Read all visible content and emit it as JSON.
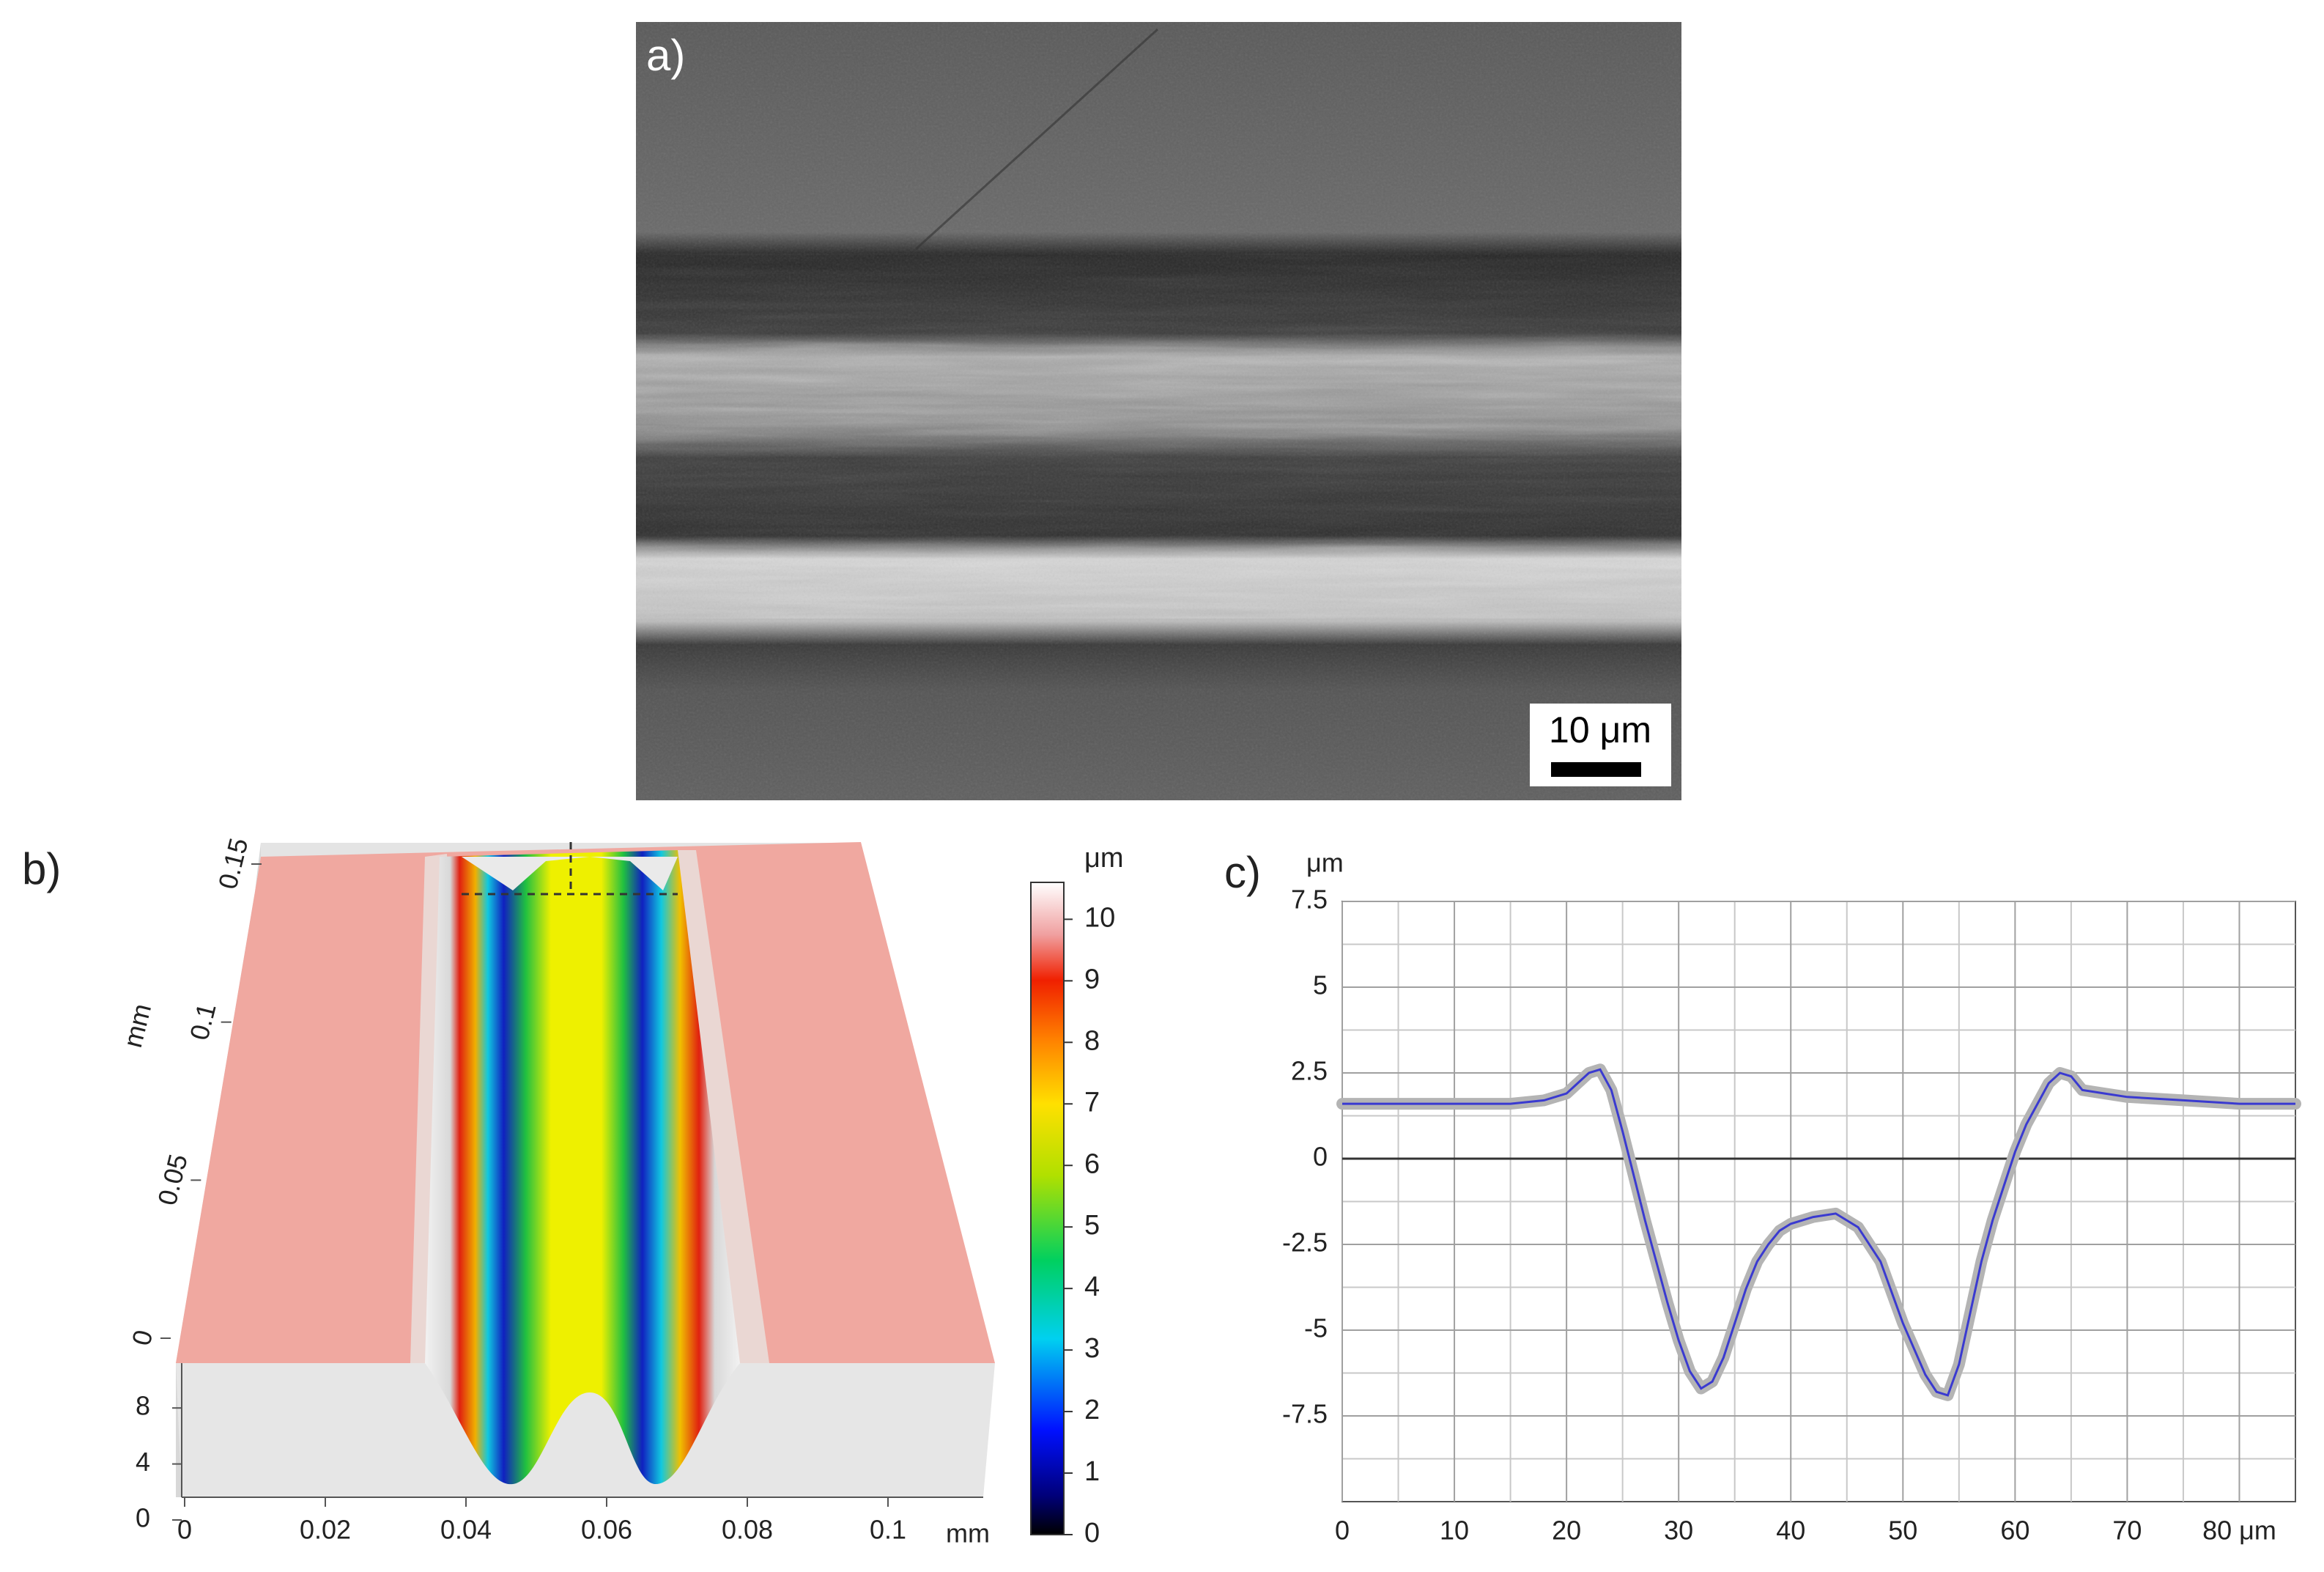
{
  "panel_a": {
    "label": "a)",
    "scale_bar": "10 μm"
  },
  "panel_b": {
    "label": "b)",
    "x_axis": {
      "ticks": [
        0,
        0.02,
        0.04,
        0.06,
        0.08,
        0.1
      ],
      "unit": "mm"
    },
    "y_axis": {
      "ticks": [
        0,
        0.05,
        0.1,
        0.15
      ],
      "unit": "mm"
    },
    "z_axis": {
      "ticks": [
        0,
        4,
        8
      ]
    },
    "colorbar": {
      "unit": "μm",
      "ticks": [
        0,
        1,
        2,
        3,
        4,
        5,
        6,
        7,
        8,
        9,
        10
      ],
      "lim": [
        0,
        10.6
      ]
    }
  },
  "chart_data": {
    "type": "line",
    "label": "c)",
    "y_unit": "μm",
    "x": [
      0,
      5,
      10,
      15,
      18,
      20,
      21,
      22,
      23,
      24,
      25,
      26,
      27,
      28,
      29,
      30,
      31,
      32,
      33,
      34,
      35,
      36,
      37,
      38,
      39,
      40,
      42,
      44,
      46,
      48,
      50,
      52,
      53,
      54,
      55,
      56,
      57,
      58,
      59,
      60,
      61,
      62,
      63,
      64,
      65,
      66,
      68,
      70,
      75,
      80,
      85
    ],
    "series": [
      {
        "color": "#3a3ad0",
        "band_color": "#b4b4b4",
        "values": [
          1.6,
          1.6,
          1.6,
          1.6,
          1.7,
          1.9,
          2.2,
          2.5,
          2.6,
          2.0,
          0.8,
          -0.5,
          -1.8,
          -3.0,
          -4.2,
          -5.3,
          -6.2,
          -6.7,
          -6.5,
          -5.8,
          -4.8,
          -3.8,
          -3.0,
          -2.5,
          -2.1,
          -1.9,
          -1.7,
          -1.6,
          -2.0,
          -3.0,
          -4.8,
          -6.3,
          -6.8,
          -6.9,
          -6.0,
          -4.5,
          -3.0,
          -1.8,
          -0.8,
          0.2,
          1.0,
          1.6,
          2.2,
          2.5,
          2.4,
          2.0,
          1.9,
          1.8,
          1.7,
          1.6,
          1.6
        ]
      }
    ],
    "xlim": [
      0,
      85
    ],
    "ylim": [
      -10,
      7.5
    ],
    "xticks": [
      0,
      10,
      20,
      30,
      40,
      50,
      60,
      70,
      {
        "value": 80,
        "label": "80 μm"
      }
    ],
    "yticks": [
      7.5,
      5,
      2.5,
      0,
      -2.5,
      -5,
      -7.5
    ],
    "x_minor_grid": [
      5,
      15,
      25,
      35,
      45,
      55,
      65,
      75
    ],
    "y_minor_grid": [
      6.25,
      3.75,
      1.25,
      -1.25,
      -3.75,
      -6.25,
      -8.75
    ],
    "grid": true
  }
}
